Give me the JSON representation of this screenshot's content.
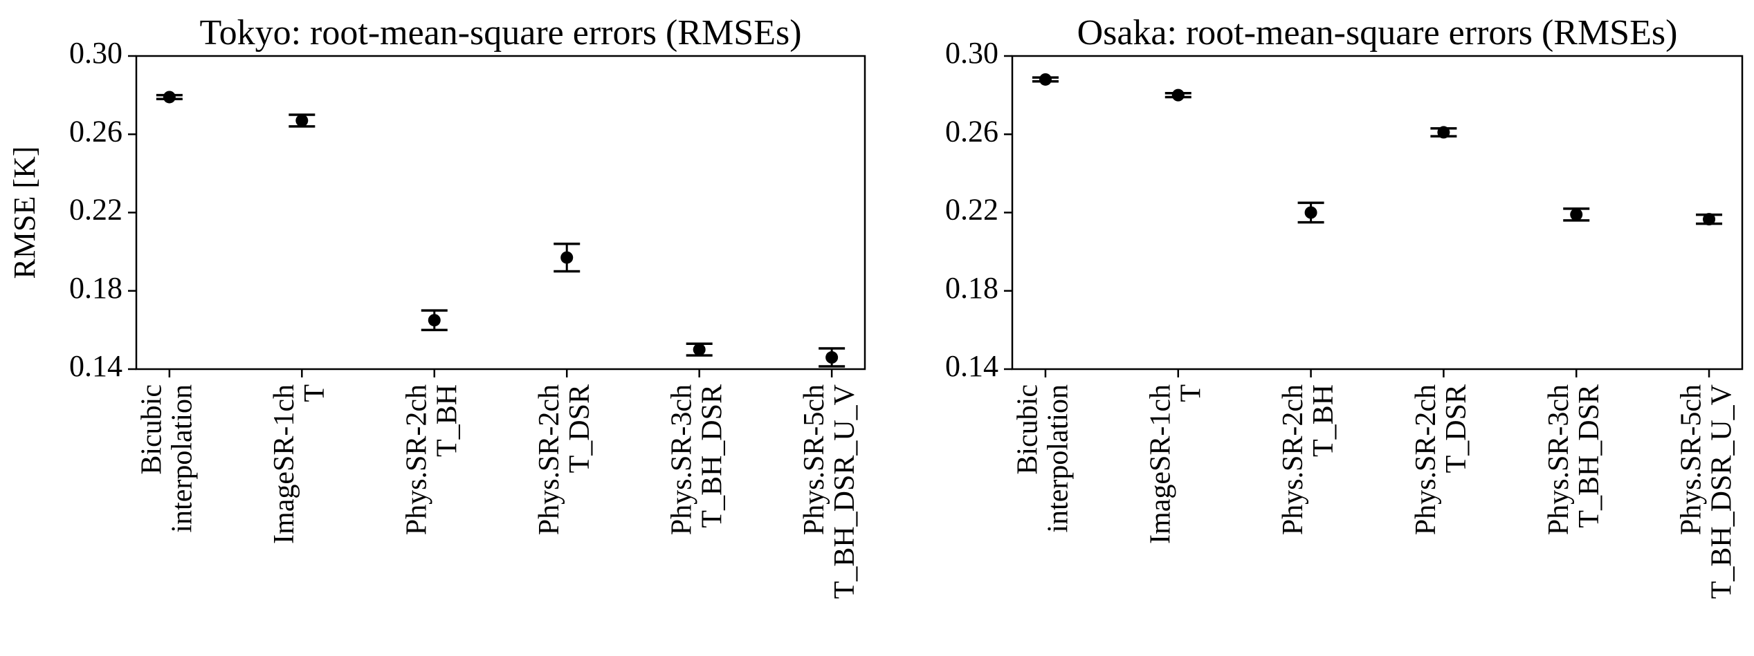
{
  "chart_data": [
    {
      "type": "errorbar",
      "title": "Tokyo: root-mean-square errors (RMSEs)",
      "ylabel": "RMSE [K]",
      "categories": [
        [
          "Bicubic",
          "interpolation"
        ],
        [
          "ImageSR-1ch",
          "T"
        ],
        [
          "Phys.SR-2ch",
          "T_BH"
        ],
        [
          "Phys.SR-2ch",
          "T_DSR"
        ],
        [
          "Phys.SR-3ch",
          "T_BH_DSR"
        ],
        [
          "Phys.SR-5ch",
          "T_BH_DSR_U_V"
        ]
      ],
      "values": [
        0.279,
        0.267,
        0.165,
        0.197,
        0.15,
        0.146
      ],
      "errors": [
        0.001,
        0.003,
        0.005,
        0.007,
        0.003,
        0.0046
      ],
      "color": "#000000",
      "ylim": [
        0.14,
        0.3
      ],
      "yticks": [
        0.14,
        0.18,
        0.22,
        0.26,
        {
          "value": 0.3,
          "label": "0.30"
        }
      ]
    },
    {
      "type": "errorbar",
      "title": "Osaka: root-mean-square errors (RMSEs)",
      "categories": [
        [
          "Bicubic",
          "interpolation"
        ],
        [
          "ImageSR-1ch",
          "T"
        ],
        [
          "Phys.SR-2ch",
          "T_BH"
        ],
        [
          "Phys.SR-2ch",
          "T_DSR"
        ],
        [
          "Phys.SR-3ch",
          "T_BH_DSR"
        ],
        [
          "Phys.SR-5ch",
          "T_BH_DSR_U_V"
        ]
      ],
      "values": [
        0.288,
        0.28,
        0.22,
        0.261,
        0.219,
        0.2166
      ],
      "errors": [
        0.001,
        0.001,
        0.005,
        0.002,
        0.003,
        0.0023
      ],
      "color": "#000000",
      "ylim": [
        0.14,
        0.3
      ],
      "yticks": [
        0.14,
        0.18,
        0.22,
        0.26,
        {
          "value": 0.3,
          "label": "0.30"
        }
      ]
    }
  ]
}
